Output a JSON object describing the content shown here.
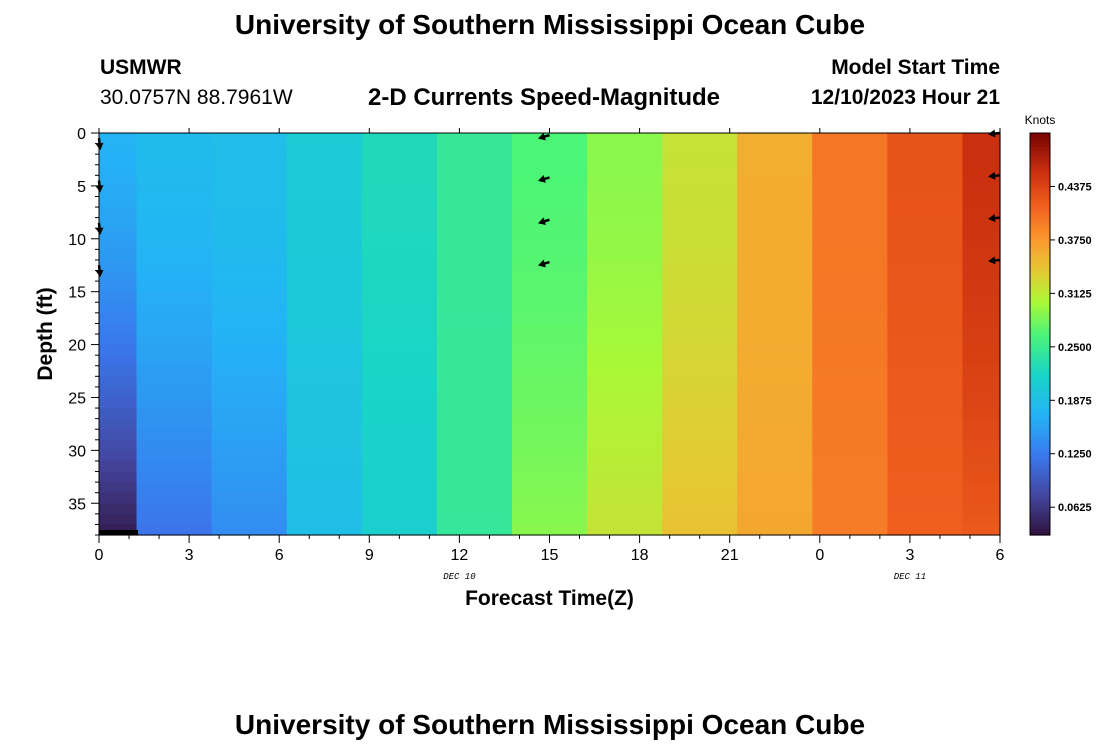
{
  "header": {
    "title": "University of Southern Mississippi Ocean Cube",
    "station": "USMWR",
    "coordinates": "30.0757N  88.7961W",
    "subtitle": "2-D Currents Speed-Magnitude",
    "model_start_label": "Model Start Time",
    "model_start_value": "12/10/2023 Hour 21"
  },
  "footer": {
    "title": "University of Southern Mississippi Ocean Cube"
  },
  "chart_data": {
    "type": "heatmap",
    "title": "2-D Currents Speed-Magnitude",
    "xlabel": "Forecast Time(Z)",
    "ylabel": "Depth (ft)",
    "x_ticks": [
      "0",
      "3",
      "6",
      "9",
      "12",
      "15",
      "18",
      "21",
      "0",
      "3",
      "6"
    ],
    "x_tick_hours": [
      0,
      3,
      6,
      9,
      12,
      15,
      18,
      21,
      24,
      27,
      30
    ],
    "xlim": [
      0,
      30
    ],
    "date_labels": [
      {
        "text": "DEC 10",
        "hour": 12
      },
      {
        "text": "DEC 11",
        "hour": 27
      }
    ],
    "y_ticks": [
      0,
      5,
      10,
      15,
      20,
      25,
      30,
      35
    ],
    "ylim": [
      0,
      38
    ],
    "colorbar": {
      "label": "Knots",
      "ticks": [
        "0.0625",
        "0.1250",
        "0.1875",
        "0.2500",
        "0.3125",
        "0.3750",
        "0.4375"
      ],
      "tick_values": [
        0.0625,
        0.125,
        0.1875,
        0.25,
        0.3125,
        0.375,
        0.4375
      ],
      "range": [
        0.03,
        0.5
      ]
    },
    "columns": [
      {
        "hour": 0,
        "surface": 0.17,
        "bottom": 0.04
      },
      {
        "hour": 2.5,
        "surface": 0.18,
        "bottom": 0.12
      },
      {
        "hour": 5,
        "surface": 0.185,
        "bottom": 0.14
      },
      {
        "hour": 7.5,
        "surface": 0.205,
        "bottom": 0.185
      },
      {
        "hour": 10,
        "surface": 0.225,
        "bottom": 0.21
      },
      {
        "hour": 12.5,
        "surface": 0.245,
        "bottom": 0.245
      },
      {
        "hour": 15,
        "surface": 0.265,
        "bottom": 0.29
      },
      {
        "hour": 17.5,
        "surface": 0.29,
        "bottom": 0.32
      },
      {
        "hour": 20,
        "surface": 0.32,
        "bottom": 0.345
      },
      {
        "hour": 22.5,
        "surface": 0.36,
        "bottom": 0.365
      },
      {
        "hour": 25,
        "surface": 0.4,
        "bottom": 0.395
      },
      {
        "hour": 27.5,
        "surface": 0.425,
        "bottom": 0.415
      },
      {
        "hour": 30,
        "surface": 0.455,
        "bottom": 0.42
      }
    ],
    "vectors": [
      {
        "hour": 0,
        "depth": 0.5,
        "dx": 0.1,
        "dy": 1
      },
      {
        "hour": 0,
        "depth": 4.5,
        "dx": 0.1,
        "dy": 1
      },
      {
        "hour": 0,
        "depth": 8.5,
        "dx": 0.1,
        "dy": 1
      },
      {
        "hour": 0,
        "depth": 12.5,
        "dx": 0.1,
        "dy": 1
      },
      {
        "hour": 15,
        "depth": 0.2,
        "dx": -1,
        "dy": 0.3
      },
      {
        "hour": 15,
        "depth": 4.2,
        "dx": -1,
        "dy": 0.3
      },
      {
        "hour": 15,
        "depth": 8.2,
        "dx": -1,
        "dy": 0.3
      },
      {
        "hour": 15,
        "depth": 12.2,
        "dx": -1,
        "dy": 0.3
      },
      {
        "hour": 30,
        "depth": 0,
        "dx": -1,
        "dy": 0.1
      },
      {
        "hour": 30,
        "depth": 4,
        "dx": -1,
        "dy": 0.1
      },
      {
        "hour": 30,
        "depth": 8,
        "dx": -1,
        "dy": 0.1
      },
      {
        "hour": 30,
        "depth": 12,
        "dx": -1,
        "dy": 0.1
      }
    ]
  }
}
